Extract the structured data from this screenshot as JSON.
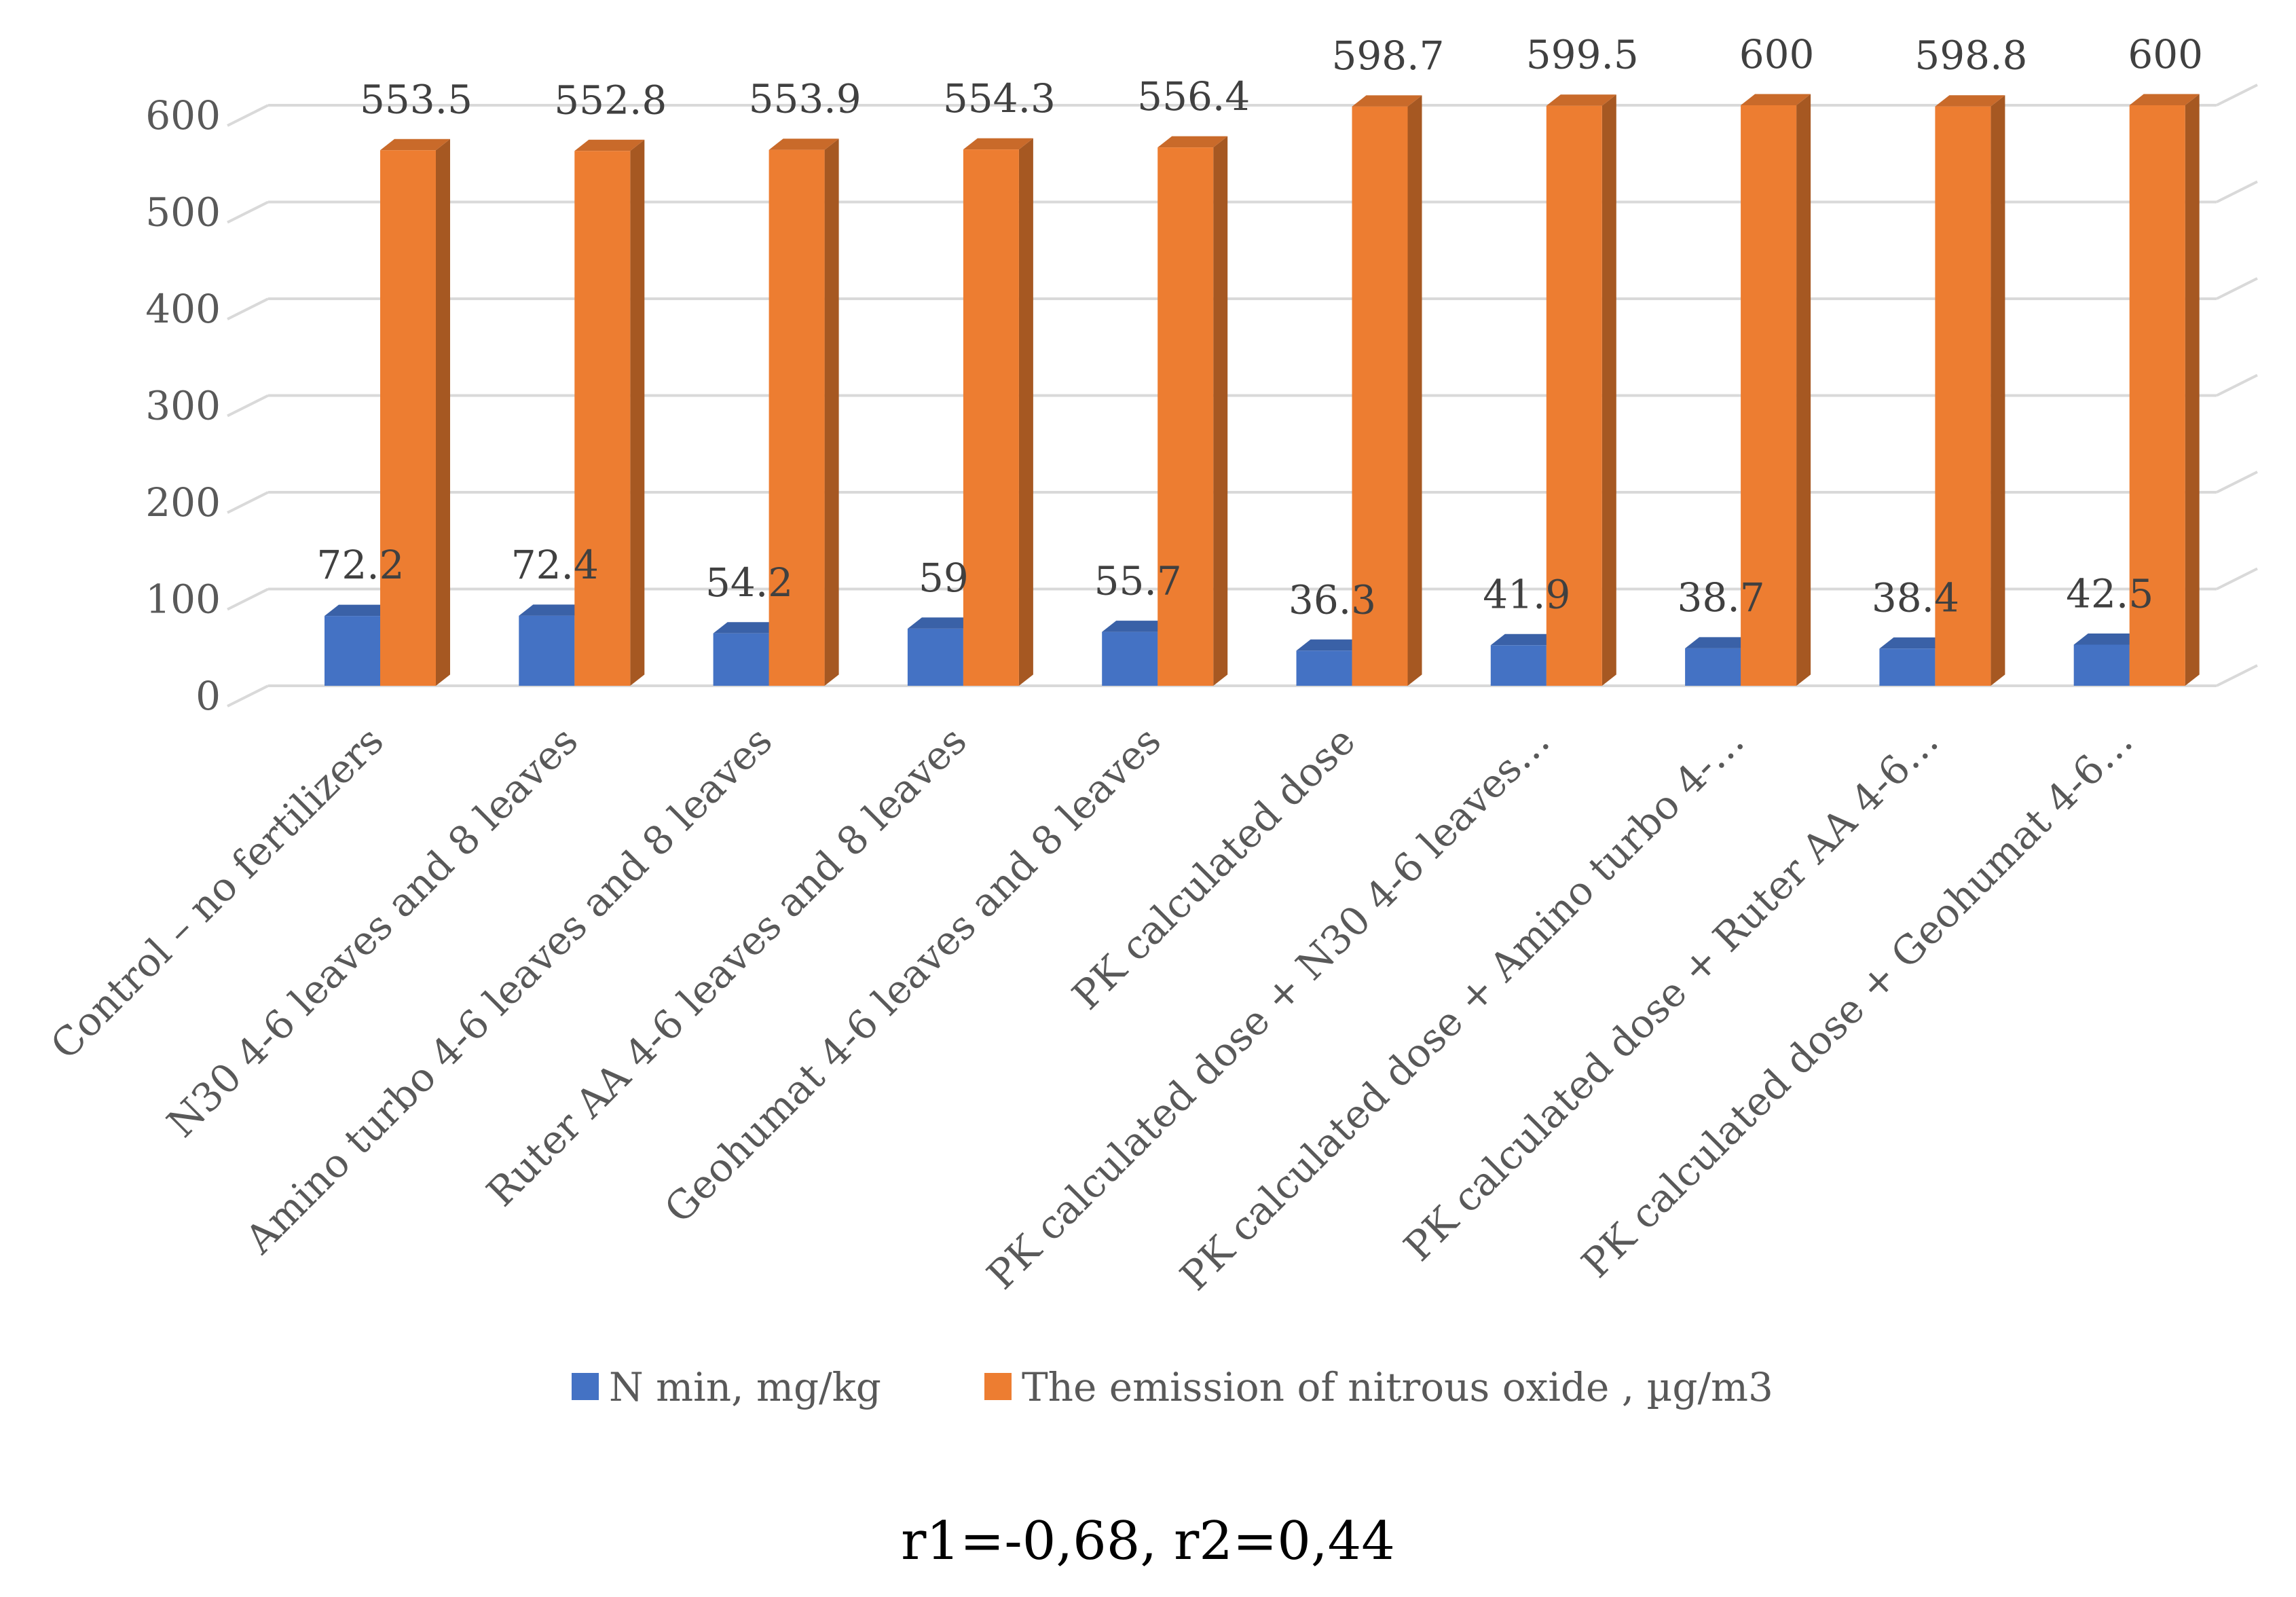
{
  "chart_data": {
    "type": "bar",
    "categories": [
      "Control – no fertilizers",
      "N30 4-6 leaves and 8 leaves",
      "Amino turbo 4-6 leaves and 8 leaves",
      "Ruter AA 4-6 leaves and 8 leaves",
      "Geohumat 4-6 leaves and 8 leaves",
      "PK calculated dose",
      "PK calculated dose + N30 4-6 leaves…",
      "PK calculated dose + Amino turbo 4-…",
      "PK calculated dose + Ruter AA 4-6…",
      "PK calculated dose + Geohumat 4-6…"
    ],
    "series": [
      {
        "name": "N min, mg/kg",
        "color": "#4472C4",
        "values": [
          72.2,
          72.4,
          54.2,
          59,
          55.7,
          36.3,
          41.9,
          38.7,
          38.4,
          42.5
        ]
      },
      {
        "name": "The emission of nitrous oxide , µg/m3",
        "color": "#ED7D31",
        "values": [
          553.5,
          552.8,
          553.9,
          554.3,
          556.4,
          598.7,
          599.5,
          600,
          598.8,
          600
        ]
      }
    ],
    "ylim": [
      0,
      600
    ],
    "yticks": [
      0,
      100,
      200,
      300,
      400,
      500,
      600
    ],
    "grid": true,
    "legend": "bottom",
    "three_d": true
  },
  "footnote": "r1=-0,68, r2=0,44"
}
